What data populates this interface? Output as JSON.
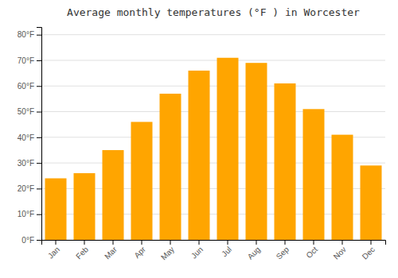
{
  "chart_data": {
    "type": "bar",
    "title": "Average monthly temperatures (°F ) in Worcester",
    "categories": [
      "Jan",
      "Feb",
      "Mar",
      "Apr",
      "May",
      "Jun",
      "Jul",
      "Aug",
      "Sep",
      "Oct",
      "Nov",
      "Dec"
    ],
    "values": [
      24,
      26,
      35,
      46,
      57,
      66,
      71,
      69,
      61,
      51,
      41,
      29
    ],
    "color": "#FFA500",
    "ylim": [
      0,
      83
    ],
    "yticks": [
      {
        "value": 0,
        "label": "0°F"
      },
      {
        "value": 10,
        "label": "10°F"
      },
      {
        "value": 20,
        "label": "20°F"
      },
      {
        "value": 30,
        "label": "30°F"
      },
      {
        "value": 40,
        "label": "40°F"
      },
      {
        "value": 50,
        "label": "50°F"
      },
      {
        "value": 60,
        "label": "60°F"
      },
      {
        "value": 70,
        "label": "70°F"
      },
      {
        "value": 80,
        "label": "80°F"
      }
    ],
    "grid": true
  }
}
